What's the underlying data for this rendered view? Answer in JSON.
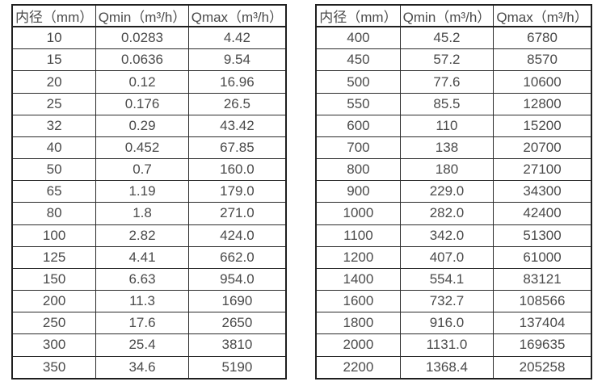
{
  "page": {
    "background": "#ffffff"
  },
  "colors": {
    "border_outer": "#1f1f1f",
    "border_inner": "#2b2b2b",
    "text": "#4a4a4a"
  },
  "left_table": {
    "headers": [
      "内径（mm）",
      "Qmin（m³/h）",
      "Qmax（m³/h）"
    ],
    "rows": [
      [
        "10",
        "0.0283",
        "4.42"
      ],
      [
        "15",
        "0.0636",
        "9.54"
      ],
      [
        "20",
        "0.12",
        "16.96"
      ],
      [
        "25",
        "0.176",
        "26.5"
      ],
      [
        "32",
        "0.29",
        "43.42"
      ],
      [
        "40",
        "0.452",
        "67.85"
      ],
      [
        "50",
        "0.7",
        "160.0"
      ],
      [
        "65",
        "1.19",
        "179.0"
      ],
      [
        "80",
        "1.8",
        "271.0"
      ],
      [
        "100",
        "2.82",
        "424.0"
      ],
      [
        "125",
        "4.41",
        "662.0"
      ],
      [
        "150",
        "6.63",
        "954.0"
      ],
      [
        "200",
        "11.3",
        "1690"
      ],
      [
        "250",
        "17.6",
        "2650"
      ],
      [
        "300",
        "25.4",
        "3810"
      ],
      [
        "350",
        "34.6",
        "5190"
      ]
    ]
  },
  "right_table": {
    "headers": [
      "内径（mm）",
      "Qmin（m³/h）",
      "Qmax（m³/h）"
    ],
    "rows": [
      [
        "400",
        "45.2",
        "6780"
      ],
      [
        "450",
        "57.2",
        "8570"
      ],
      [
        "500",
        "77.6",
        "10600"
      ],
      [
        "550",
        "85.5",
        "12800"
      ],
      [
        "600",
        "110",
        "15200"
      ],
      [
        "700",
        "138",
        "20700"
      ],
      [
        "800",
        "180",
        "27100"
      ],
      [
        "900",
        "229.0",
        "34300"
      ],
      [
        "1000",
        "282.0",
        "42400"
      ],
      [
        "1100",
        "342.0",
        "51300"
      ],
      [
        "1200",
        "407.0",
        "61000"
      ],
      [
        "1400",
        "554.1",
        "83121"
      ],
      [
        "1600",
        "732.7",
        "108566"
      ],
      [
        "1800",
        "916.0",
        "137404"
      ],
      [
        "2000",
        "1131.0",
        "169635"
      ],
      [
        "2200",
        "1368.4",
        "205258"
      ]
    ]
  }
}
